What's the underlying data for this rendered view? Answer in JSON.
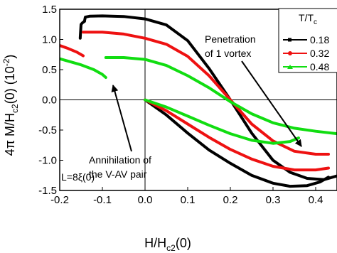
{
  "chart_data": {
    "type": "line",
    "xlabel_main": "H/H",
    "xlabel_sub": "c2",
    "xlabel_tail": "(0)",
    "ylabel": "4π M/H",
    "ylabel_sub": "c2",
    "ylabel_tail": "(0) (10",
    "ylabel_sup": "-2",
    "ylabel_close": ")",
    "xlim": [
      -0.2,
      0.45
    ],
    "ylim": [
      -1.5,
      1.5
    ],
    "xticks": [
      -0.2,
      -0.1,
      0.0,
      0.1,
      0.2,
      0.3,
      0.4
    ],
    "xtick_labels": [
      "-0.2",
      "-0.1",
      "0.0",
      "0.1",
      "0.2",
      "0.3",
      "0.4"
    ],
    "yticks": [
      -1.5,
      -1.0,
      -0.5,
      0.0,
      0.5,
      1.0,
      1.5
    ],
    "ytick_labels": [
      "-1.5",
      "-1.0",
      "-0.5",
      "0.0",
      "0.5",
      "1.0",
      "1.5"
    ],
    "legend": {
      "title": "T/T",
      "title_sub": "c",
      "placement": "top-right",
      "entries": [
        "0.18",
        "0.32",
        "0.48"
      ]
    },
    "annotations": {
      "penetration": [
        "Penetration",
        "of 1 vortex"
      ],
      "annihilation": [
        "Annihilation of",
        "the V-AV pair"
      ],
      "size_label": "L=8ξ(0)"
    },
    "series": [
      {
        "name": "0.18",
        "color": "#000000",
        "segments": [
          [
            [
              -0.152,
              1.02
            ],
            [
              -0.15,
              1.25
            ],
            [
              -0.146,
              1.28
            ],
            [
              -0.142,
              1.3
            ]
          ],
          [
            [
              -0.142,
              1.3
            ],
            [
              -0.14,
              1.37
            ],
            [
              -0.13,
              1.385
            ],
            [
              -0.1,
              1.39
            ],
            [
              -0.05,
              1.38
            ],
            [
              0.0,
              1.34
            ],
            [
              0.05,
              1.24
            ],
            [
              0.1,
              0.98
            ],
            [
              0.15,
              0.52
            ],
            [
              0.2,
              0.0
            ],
            [
              0.25,
              -0.55
            ],
            [
              0.3,
              -1.0
            ],
            [
              0.34,
              -1.2
            ],
            [
              0.38,
              -1.3
            ],
            [
              0.42,
              -1.32
            ],
            [
              0.45,
              -1.26
            ]
          ],
          [
            [
              0.0,
              0.0
            ],
            [
              0.05,
              -0.25
            ],
            [
              0.1,
              -0.55
            ],
            [
              0.15,
              -0.83
            ],
            [
              0.2,
              -1.05
            ],
            [
              0.25,
              -1.25
            ],
            [
              0.3,
              -1.38
            ],
            [
              0.34,
              -1.43
            ],
            [
              0.38,
              -1.42
            ],
            [
              0.41,
              -1.36
            ],
            [
              0.43,
              -1.28
            ]
          ]
        ]
      },
      {
        "name": "0.32",
        "color": "#ee1111",
        "segments": [
          [
            [
              -0.2,
              0.9
            ],
            [
              -0.18,
              0.85
            ],
            [
              -0.16,
              0.79
            ],
            [
              -0.145,
              0.73
            ]
          ],
          [
            [
              -0.145,
              1.12
            ],
            [
              -0.1,
              1.12
            ],
            [
              -0.05,
              1.09
            ],
            [
              0.0,
              1.02
            ],
            [
              0.05,
              0.92
            ],
            [
              0.1,
              0.72
            ],
            [
              0.15,
              0.4
            ],
            [
              0.2,
              0.0
            ],
            [
              0.25,
              -0.4
            ],
            [
              0.3,
              -0.68
            ],
            [
              0.35,
              -0.85
            ],
            [
              0.4,
              -0.9
            ],
            [
              0.43,
              -0.9
            ]
          ],
          [
            [
              0.0,
              0.0
            ],
            [
              0.05,
              -0.18
            ],
            [
              0.1,
              -0.4
            ],
            [
              0.15,
              -0.62
            ],
            [
              0.2,
              -0.82
            ],
            [
              0.25,
              -0.98
            ],
            [
              0.3,
              -1.1
            ],
            [
              0.35,
              -1.16
            ],
            [
              0.4,
              -1.16
            ],
            [
              0.43,
              -1.13
            ]
          ]
        ]
      },
      {
        "name": "0.48",
        "color": "#11dd11",
        "segments": [
          [
            [
              -0.2,
              0.68
            ],
            [
              -0.15,
              0.58
            ],
            [
              -0.12,
              0.5
            ],
            [
              -0.1,
              0.42
            ],
            [
              -0.092,
              0.37
            ]
          ],
          [
            [
              -0.092,
              0.7
            ],
            [
              -0.05,
              0.7
            ],
            [
              0.0,
              0.67
            ],
            [
              0.05,
              0.57
            ],
            [
              0.1,
              0.4
            ],
            [
              0.15,
              0.2
            ],
            [
              0.2,
              -0.03
            ],
            [
              0.25,
              -0.23
            ],
            [
              0.3,
              -0.38
            ],
            [
              0.35,
              -0.47
            ],
            [
              0.4,
              -0.52
            ],
            [
              0.45,
              -0.56
            ]
          ],
          [
            [
              0.0,
              0.0
            ],
            [
              0.05,
              -0.12
            ],
            [
              0.1,
              -0.27
            ],
            [
              0.15,
              -0.42
            ],
            [
              0.2,
              -0.56
            ],
            [
              0.25,
              -0.67
            ],
            [
              0.3,
              -0.72
            ],
            [
              0.34,
              -0.69
            ],
            [
              0.36,
              -0.63
            ]
          ]
        ]
      }
    ]
  }
}
